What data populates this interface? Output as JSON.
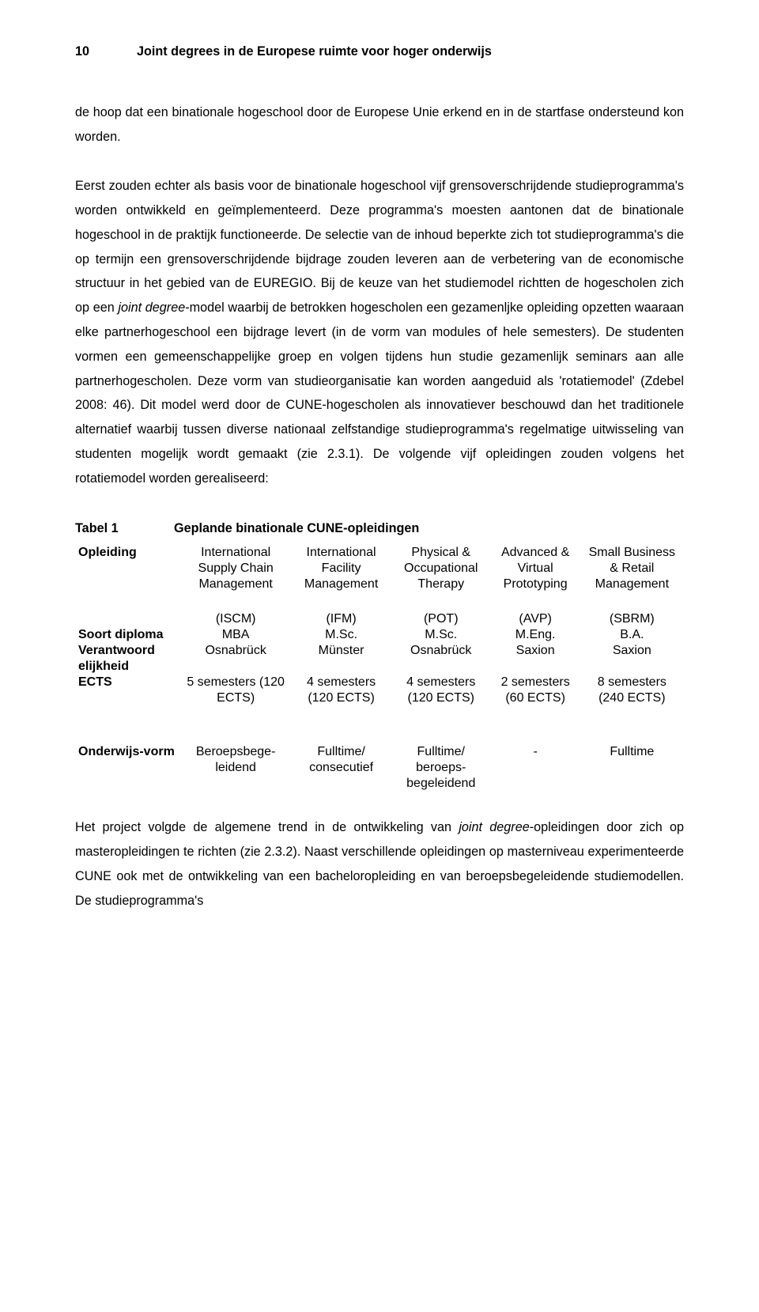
{
  "header": {
    "page_number": "10",
    "title": "Joint degrees in de Europese ruimte voor hoger onderwijs"
  },
  "body": {
    "p1_a": "de hoop dat een binationale hogeschool door de Europese Unie erkend en in de startfase ondersteund kon worden.",
    "p2_a": "Eerst zouden echter als basis voor de binationale hogeschool vijf grensoverschrijdende studieprogramma's worden ontwikkeld en geïmplementeerd. Deze programma's moesten aantonen dat de binationale hogeschool in de praktijk functioneerde. De selectie van de inhoud beperkte zich tot studieprogramma's die op termijn een grensoverschrijdende bijdrage zouden leveren aan de verbetering van de economische structuur in het gebied van de EUREGIO. Bij de keuze van het studiemodel richtten de hogescholen zich op een ",
    "p2_em1": "joint degree",
    "p2_b": "-model waarbij de betrokken hogescholen een gezamenljke opleiding opzetten waaraan elke partnerhogeschool een bijdrage levert (in de vorm van modules of hele semesters). De studenten vormen een gemeenschappelijke groep en volgen tijdens hun studie gezamenlijk seminars aan alle partnerhogescholen. Deze vorm van studieorganisatie kan worden aangeduid als 'rotatiemodel' (Zdebel 2008: 46). Dit model werd door de CUNE-hogescholen als innovatiever beschouwd dan het traditionele alternatief waarbij tussen diverse nationaal zelfstandige studieprogramma's regelmatige uitwisseling van studenten mogelijk wordt gemaakt (zie 2.3.1). De volgende vijf opleidingen zouden volgens het rotatiemodel worden gerealiseerd:"
  },
  "table": {
    "label": "Tabel 1",
    "title": "Geplande binationale CUNE-opleidingen",
    "rows": {
      "r1_head": "Opleiding",
      "r1": [
        "International Supply Chain Management",
        "International Facility Management",
        "Physical & Occupational Therapy",
        "Advanced & Virtual Prototyping",
        "Small Business & Retail Management"
      ],
      "r2": [
        "(ISCM)",
        "(IFM)",
        "(POT)",
        "(AVP)",
        "(SBRM)"
      ],
      "r3_head": "Soort diploma",
      "r3": [
        "MBA",
        "M.Sc.",
        "M.Sc.",
        "M.Eng.",
        "B.A."
      ],
      "r4_head": "Verantwoord elijkheid",
      "r4": [
        "Osnabrück",
        "Münster",
        "Osnabrück",
        "Saxion",
        "Saxion"
      ],
      "r5_head": "ECTS",
      "r5": [
        "5 semesters (120 ECTS)",
        "4 semesters (120 ECTS)",
        "4 semesters (120 ECTS)",
        "2 semesters (60 ECTS)",
        "8 semesters (240 ECTS)"
      ],
      "r6_head": "Onderwijs-vorm",
      "r6": [
        "Beroepsbege-leidend",
        "Fulltime/ consecutief",
        "Fulltime/ beroeps-begeleidend",
        "-",
        "Fulltime"
      ]
    }
  },
  "trailing": {
    "a": "Het project volgde de algemene trend in de ontwikkeling van ",
    "em1": "joint degree",
    "b": "-opleidingen door zich op masteropleidingen te richten (zie 2.3.2). Naast verschillende opleidingen op masterniveau experimenteerde CUNE ook met de ontwikkeling van een bacheloropleiding en van beroepsbegeleidende studiemodellen. De studieprogramma's"
  }
}
